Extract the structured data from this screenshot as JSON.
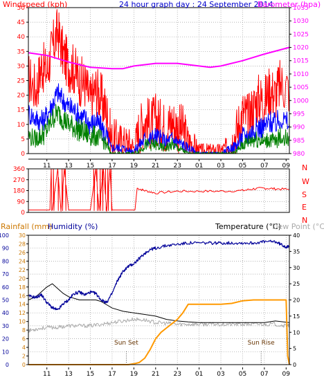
{
  "colors": {
    "wind_gust": "#ff0000",
    "wind_avg": "#0000ff",
    "wind_speed": "#008000",
    "barometer": "#ff00ff",
    "direction": "#ff0000",
    "rainfall": "#ff9900",
    "humidity": "#000099",
    "temperature": "#000000",
    "dewpoint": "#aaaaaa",
    "grid": "#999999",
    "wind_axis": "#ff0000",
    "baro_axis": "#ff00ff",
    "rain_axis": "#cc7700",
    "hum_axis": "#000099"
  },
  "chart_data": [
    {
      "type": "line",
      "title": "24 hour graph day : 24 September 2014",
      "ylabel": "Windspeed (kph)",
      "y2label": "Barometer (hpa)",
      "x_ticks": [
        "11",
        "13",
        "15",
        "17",
        "19",
        "21",
        "23",
        "01",
        "03",
        "05",
        "07",
        "09"
      ],
      "ylim": [
        0,
        50
      ],
      "y_ticks": [
        "0",
        "5",
        "10",
        "15",
        "20",
        "25",
        "30",
        "35",
        "40",
        "45",
        "50"
      ],
      "y2lim": [
        980,
        1035
      ],
      "y2_ticks": [
        "980",
        "985",
        "990",
        "995",
        "1000",
        "1005",
        "1010",
        "1015",
        "1020",
        "1025",
        "1030",
        "1035"
      ],
      "grid": true,
      "series": [
        {
          "name": "Windspeed (kph)",
          "role": "gust",
          "x": [
            9.3,
            10,
            10.5,
            11,
            11.5,
            12,
            12.5,
            13,
            13.5,
            14,
            14.5,
            15,
            15.5,
            16,
            16.5,
            16.9,
            17.5,
            18,
            18.5,
            19,
            19.5,
            20,
            20.5,
            21,
            21.5,
            22,
            22.5,
            23,
            23.5,
            24,
            24.5,
            25,
            25.5,
            26,
            26.5,
            27,
            27.5,
            28,
            28.5,
            29,
            29.5,
            30,
            30.5,
            31,
            31.5,
            32,
            32.5,
            33.3
          ],
          "values": [
            26,
            22,
            30,
            28,
            36,
            42,
            34,
            30,
            29,
            25,
            24,
            18,
            22,
            19,
            14,
            5,
            5,
            4,
            4,
            2,
            8,
            12,
            10,
            12,
            10,
            9,
            11,
            9,
            8,
            4,
            3,
            1,
            1,
            1,
            1,
            1,
            2,
            4,
            8,
            14,
            12,
            16,
            19,
            18,
            22,
            20,
            24,
            22
          ]
        },
        {
          "name": "",
          "role": "average",
          "x": [
            9.3,
            10,
            10.5,
            11,
            11.5,
            12,
            12.5,
            13,
            13.5,
            14,
            14.5,
            15,
            15.5,
            16,
            16.5,
            16.9,
            17.5,
            18,
            18.5,
            19,
            19.5,
            20,
            20.5,
            21,
            21.5,
            22,
            22.5,
            23,
            23.5,
            24,
            24.5,
            25,
            25.5,
            26,
            26.5,
            27,
            27.5,
            28,
            28.5,
            29,
            29.5,
            30,
            30.5,
            31,
            31.5,
            32,
            32.5,
            33.3
          ],
          "values": [
            14,
            12,
            11,
            13,
            17,
            21,
            18,
            16,
            15,
            13,
            12,
            10,
            11,
            9,
            6,
            2,
            2,
            2,
            1,
            1,
            3,
            5,
            5,
            6,
            5,
            4,
            5,
            4,
            3,
            2,
            1,
            0,
            0,
            0,
            0,
            0,
            1,
            2,
            3,
            6,
            6,
            8,
            9,
            9,
            11,
            10,
            12,
            10
          ]
        },
        {
          "name": "",
          "role": "speed",
          "x": [
            9.3,
            10,
            10.5,
            11,
            11.5,
            12,
            12.5,
            13,
            13.5,
            14,
            14.5,
            15,
            15.5,
            16,
            16.5,
            16.9,
            17.5,
            18,
            18.5,
            19,
            19.5,
            20,
            20.5,
            21,
            21.5,
            22,
            22.5,
            23,
            23.5,
            24,
            24.5,
            25,
            25.5,
            26,
            26.5,
            27,
            27.5,
            28,
            28.5,
            29,
            29.5,
            30,
            30.5,
            31,
            31.5,
            32,
            32.5,
            33.3
          ],
          "values": [
            6,
            5,
            6,
            8,
            12,
            14,
            12,
            10,
            9,
            8,
            7,
            6,
            6,
            5,
            3,
            0,
            0,
            0,
            0,
            0,
            1,
            3,
            3,
            3,
            2,
            2,
            3,
            2,
            1,
            0,
            0,
            0,
            0,
            0,
            0,
            0,
            0,
            0,
            1,
            3,
            4,
            5,
            5,
            4,
            5,
            4,
            6,
            5
          ]
        },
        {
          "name": "Barometer (hpa)",
          "axis": "y2",
          "x": [
            9.3,
            11,
            13,
            15,
            17,
            18,
            19,
            21,
            23,
            25,
            26,
            27,
            29,
            31,
            33.3
          ],
          "values": [
            1018,
            1017,
            1014.5,
            1012.5,
            1012,
            1012,
            1013,
            1014,
            1014,
            1013,
            1012.5,
            1013,
            1015,
            1017.5,
            1020
          ]
        }
      ]
    },
    {
      "type": "scatter",
      "ylabel_letters": [
        "N",
        "W",
        "S",
        "E",
        "N"
      ],
      "ylim": [
        0,
        360
      ],
      "y_ticks": [
        "0",
        "90",
        "180",
        "270",
        "360"
      ],
      "x_ticks": [
        "11",
        "13",
        "15",
        "17",
        "19",
        "21",
        "23",
        "01",
        "03",
        "05",
        "07",
        "09"
      ],
      "grid": true,
      "series": [
        {
          "name": "",
          "role": "direction",
          "x": [
            9.3,
            11.5,
            12,
            12.3,
            12.6,
            13,
            15,
            15.5,
            15.8,
            16.2,
            16.5,
            16.8,
            17,
            17.5,
            19.1,
            19.3,
            20,
            21,
            23,
            25,
            27,
            29,
            30,
            31,
            32,
            33.3
          ],
          "values": [
            20,
            20,
            360,
            10,
            360,
            20,
            20,
            360,
            15,
            360,
            10,
            360,
            20,
            20,
            20,
            200,
            180,
            160,
            175,
            175,
            175,
            180,
            195,
            200,
            195,
            190
          ]
        }
      ]
    },
    {
      "type": "line",
      "ylabel_left": "Rainfall (mm)",
      "ylabel_left2": "Humidity (%)",
      "ylabel_right": "Temperature (°C)",
      "ylabel_right2": "Dew Point (°C)",
      "x_ticks": [
        "11",
        "13",
        "15",
        "17",
        "19",
        "21",
        "23",
        "01",
        "03",
        "05",
        "07",
        "09"
      ],
      "humidity_ylim": [
        0,
        100
      ],
      "humidity_ticks": [
        "0",
        "10",
        "20",
        "30",
        "40",
        "50",
        "60",
        "70",
        "80",
        "90",
        "100"
      ],
      "rain_ylim": [
        0,
        30
      ],
      "rain_ticks": [
        "0",
        "2",
        "4",
        "6",
        "8",
        "10",
        "12",
        "14",
        "16",
        "18",
        "20",
        "22",
        "24",
        "26",
        "28",
        "30"
      ],
      "temp_ylim": [
        0,
        40
      ],
      "temp_ticks": [
        "0",
        "5",
        "10",
        "15",
        "20",
        "25",
        "30",
        "35",
        "40"
      ],
      "grid": true,
      "annotations": [
        {
          "label": "Sun Set",
          "x": 18.3
        },
        {
          "label": "Sun Rise",
          "x": 30.7
        }
      ],
      "series": [
        {
          "name": "Humidity (%)",
          "axis": "humidity",
          "x": [
            9.3,
            10,
            10.5,
            11,
            11.5,
            12,
            12.5,
            13,
            13.5,
            14,
            14.5,
            15,
            15.5,
            16,
            16.5,
            17,
            17.5,
            18,
            18.5,
            19,
            19.5,
            20,
            20.5,
            21,
            22,
            23,
            24,
            25,
            26,
            27,
            28,
            29,
            30,
            31,
            32,
            32.5,
            33,
            33.3
          ],
          "values": [
            53,
            52,
            54,
            48,
            44,
            42,
            47,
            50,
            55,
            56,
            54,
            56,
            55,
            50,
            48,
            55,
            65,
            72,
            76,
            78,
            82,
            86,
            89,
            90,
            92,
            93,
            94,
            94,
            94,
            94,
            94,
            94,
            94,
            95,
            95,
            93,
            91,
            91
          ]
        },
        {
          "name": "Temperature (°C)",
          "axis": "temp",
          "x": [
            9.3,
            10,
            11,
            11.5,
            12,
            12.5,
            13,
            14,
            15,
            15.5,
            16,
            16.5,
            17,
            18,
            19,
            20,
            21,
            22,
            23,
            24,
            25,
            26,
            27,
            28,
            29,
            30,
            31,
            32,
            32.5,
            33.3
          ],
          "values": [
            20,
            21,
            24,
            25,
            23.5,
            22,
            21,
            20,
            20,
            20,
            19.5,
            18.5,
            17.5,
            16.5,
            16,
            15.5,
            15,
            14,
            13.5,
            13.2,
            13,
            13,
            13,
            13,
            13,
            13,
            13,
            13.5,
            13.3,
            13
          ]
        },
        {
          "name": "Dew Point (°C)",
          "axis": "temp",
          "x": [
            9.3,
            10,
            11,
            12,
            13,
            14,
            15,
            16,
            17,
            18,
            19,
            20,
            21,
            22,
            23,
            24,
            25,
            26,
            27,
            28,
            29,
            30,
            31,
            32,
            33,
            33.3
          ],
          "values": [
            10.5,
            11,
            11.5,
            11.5,
            12,
            12,
            12,
            12.5,
            13,
            13.5,
            14,
            13.8,
            13,
            12.8,
            12.5,
            12.5,
            12.5,
            12.5,
            12.5,
            12.5,
            12.5,
            12.5,
            12.5,
            12.5,
            12,
            12
          ]
        },
        {
          "name": "Rainfall (mm)",
          "axis": "rain",
          "x": [
            9.3,
            18.5,
            19,
            19.5,
            20,
            20.5,
            21,
            21.5,
            22,
            22.5,
            23,
            23.5,
            24,
            25,
            26,
            27,
            28,
            29,
            30,
            31,
            32,
            33,
            33.15,
            33.3
          ],
          "values": [
            0,
            0,
            0.2,
            0.5,
            1.5,
            3.5,
            6,
            7.5,
            8.5,
            9.5,
            10.5,
            12,
            14,
            14,
            14,
            14,
            14.2,
            14.8,
            15,
            15,
            15,
            15,
            2,
            0
          ]
        }
      ]
    }
  ]
}
